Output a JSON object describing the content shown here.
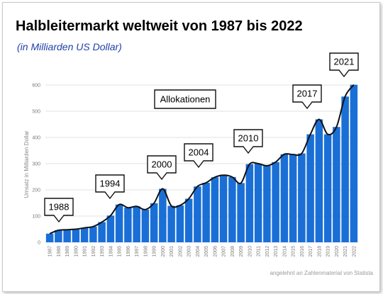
{
  "title": "Halbleitermarkt weltweit von 1987 bis 2022",
  "subtitle": "(in Milliarden  US Dollar)",
  "source": "angelehnt an Zahlenmaterial von Statista",
  "colors": {
    "bar": "#1a6fd6",
    "curve": "#111111",
    "subtitle": "#1f3fa8",
    "grid": "#d9d9d9"
  },
  "chart_data": {
    "type": "bar",
    "title": "Halbleitermarkt weltweit von 1987 bis 2022",
    "ylabel": "Umsatz in Milliarden Dollar",
    "xlabel": "",
    "ylim": [
      0,
      600
    ],
    "yticks": [
      0,
      100,
      200,
      300,
      400,
      500,
      600
    ],
    "grid": true,
    "categories": [
      "1987",
      "1988",
      "1989",
      "1990",
      "1991",
      "1992",
      "1993",
      "1994",
      "1995",
      "1996",
      "1997",
      "1998",
      "1999",
      "2000",
      "2001",
      "2002",
      "2003",
      "2004",
      "2005",
      "2006",
      "2007",
      "2008",
      "2009",
      "2010",
      "2011",
      "2012",
      "2013",
      "2014",
      "2015",
      "2016",
      "2017",
      "2018",
      "2019",
      "2020",
      "2021",
      "2022"
    ],
    "values": [
      33,
      46,
      48,
      50,
      55,
      60,
      77,
      102,
      144,
      132,
      137,
      125,
      149,
      204,
      139,
      141,
      166,
      213,
      227,
      248,
      256,
      249,
      226,
      298,
      300,
      292,
      306,
      336,
      335,
      339,
      412,
      469,
      412,
      440,
      556,
      601
    ],
    "annotations": [
      "Allokationen",
      "1988",
      "1994",
      "2000",
      "2004",
      "2010",
      "2017",
      "2021"
    ]
  }
}
